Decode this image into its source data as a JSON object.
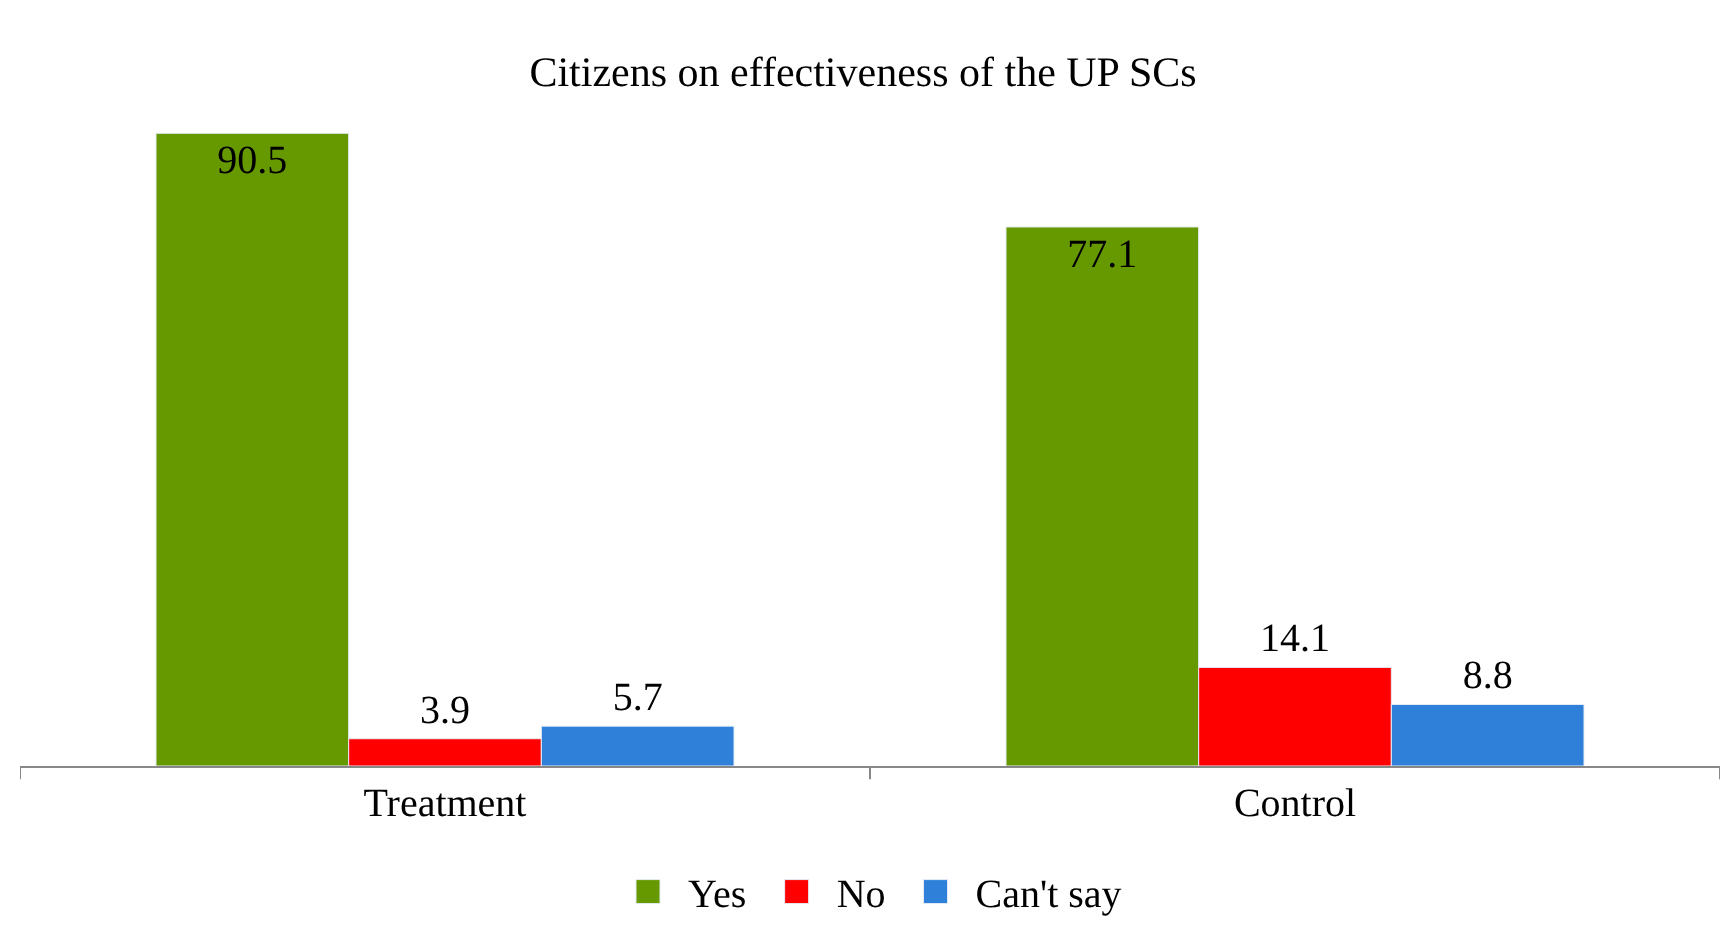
{
  "chart_data": {
    "type": "bar",
    "title": "Citizens on effectiveness of the UP SCs",
    "categories": [
      "Treatment",
      "Control"
    ],
    "series": [
      {
        "name": "Yes",
        "color": "#669900",
        "values": [
          90.5,
          77.1
        ]
      },
      {
        "name": "No",
        "color": "#ff0000",
        "values": [
          3.9,
          14.1
        ]
      },
      {
        "name": "Can't say",
        "color": "#2e80d8",
        "values": [
          5.7,
          8.8
        ]
      }
    ],
    "data_labels": true,
    "legend": "bottom",
    "tick_labels": "x"
  }
}
